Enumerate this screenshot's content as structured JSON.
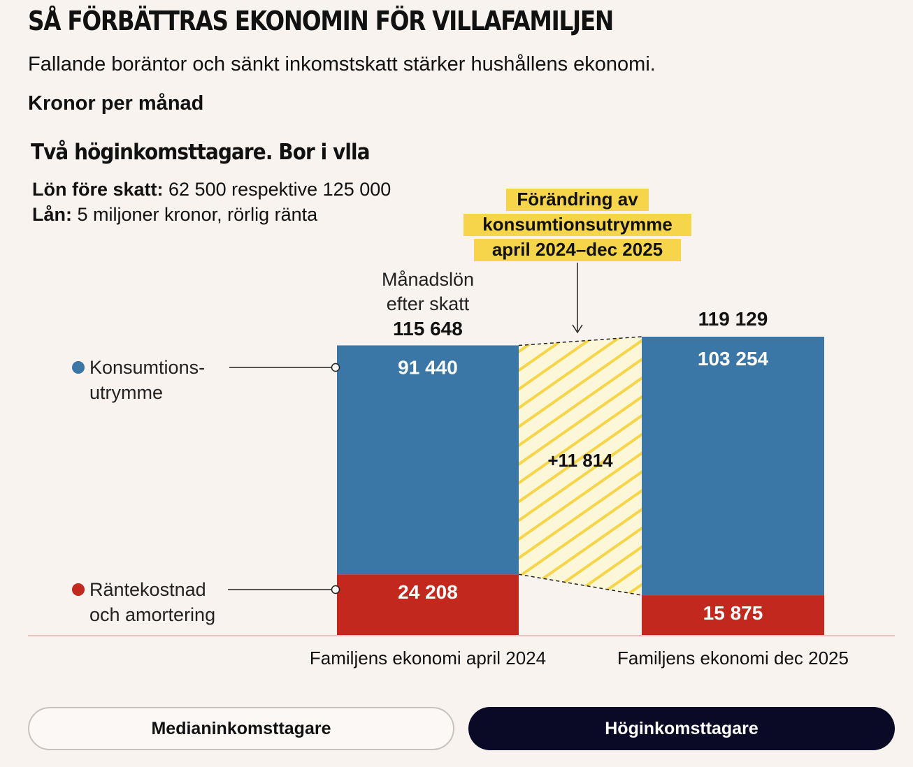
{
  "header": {
    "title": "SÅ FÖRBÄTTRAS EKONOMIN FÖR VILLAFAMILJEN",
    "subtitle": "Fallande boräntor och sänkt inkomstskatt stärker hushållens ekonomi.",
    "unit": "Kronor per månad"
  },
  "panel": {
    "title": "Två höginkomsttagare. Bor i vlla",
    "salary_label": "Lön före skatt:",
    "salary_value": " 62 500 respektive 125 000",
    "loan_label": "Lån:",
    "loan_value": " 5 miljoner kronor, rörlig ränta"
  },
  "chart_data": {
    "type": "bar",
    "stacked": true,
    "categories": [
      "Familjens ekonomi april 2024",
      "Familjens ekonomi dec 2025"
    ],
    "series": [
      {
        "name": "Räntekostnad och amortering",
        "values": [
          24208,
          15875
        ],
        "labels": [
          "24 208",
          "15 875"
        ],
        "color": "#c3281e"
      },
      {
        "name": "Konsumtionsutrymme",
        "values": [
          91440,
          103254
        ],
        "labels": [
          "91 440",
          "103 254"
        ],
        "color": "#3a76a6"
      }
    ],
    "totals": [
      115648,
      119129
    ],
    "total_labels": [
      "115 648",
      "119 129"
    ],
    "total_caption_lines": [
      "Månadslön",
      "efter skatt"
    ],
    "legend": [
      {
        "lines": [
          "Konsumtions-",
          "utrymme"
        ],
        "color": "#3a76a6"
      },
      {
        "lines": [
          "Räntekostnad",
          "och amortering"
        ],
        "color": "#c3281e"
      }
    ],
    "change": {
      "label_lines": [
        "Förändring av",
        "konsumtionsutrymme",
        "april 2024–dec 2025"
      ],
      "value_label": "+11 814",
      "highlight_color": "#f6d54a"
    },
    "ylim": [
      0,
      119129
    ],
    "grid": false
  },
  "buttons": {
    "median": "Medianinkomsttagare",
    "high": "Höginkomsttagare"
  }
}
